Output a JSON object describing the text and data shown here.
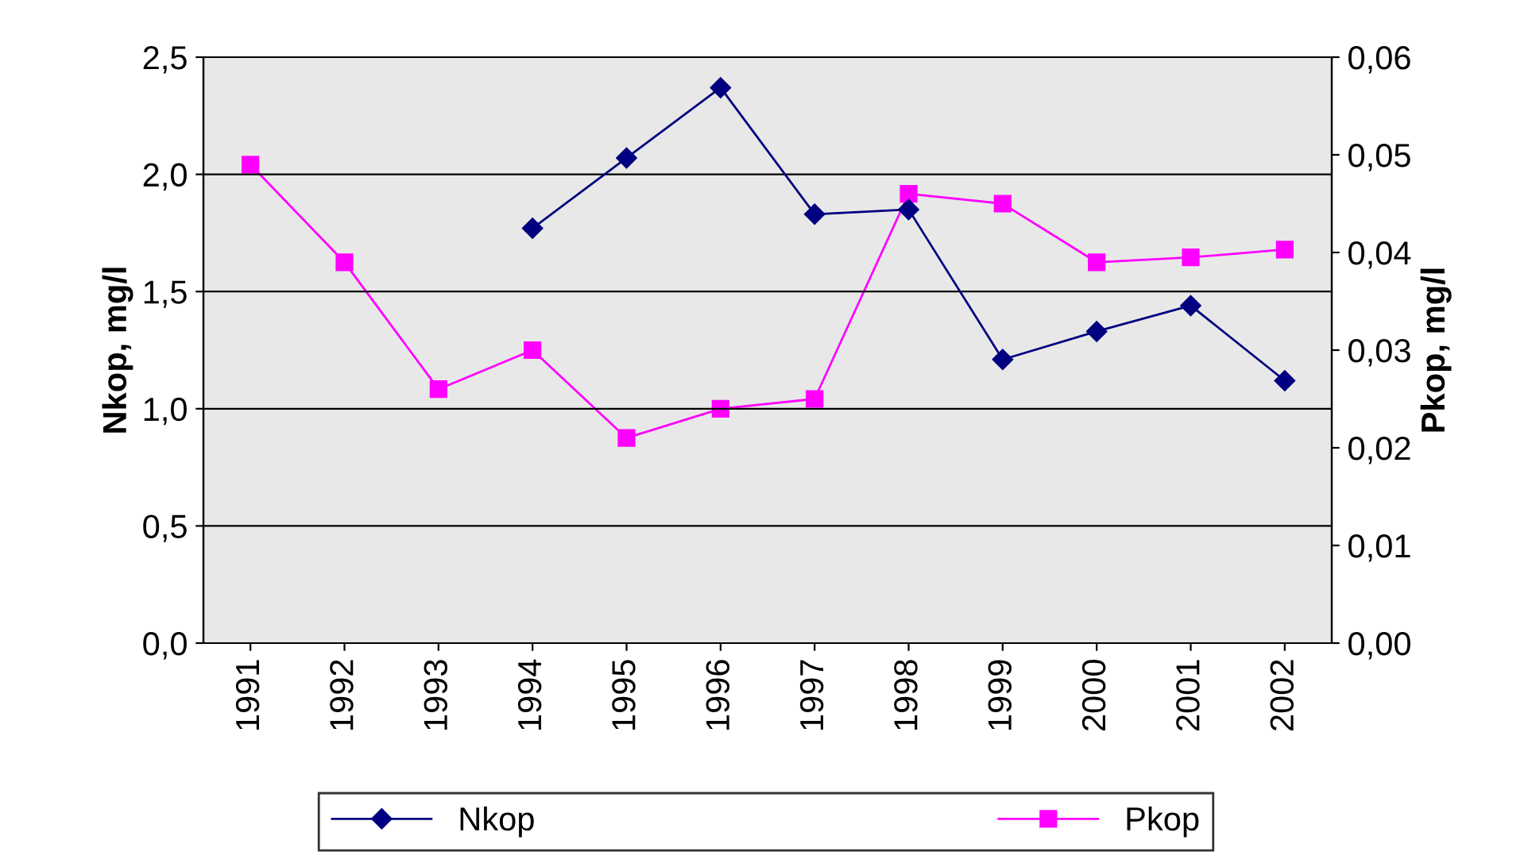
{
  "chart_data": {
    "type": "line",
    "categories": [
      "1991",
      "1992",
      "1993",
      "1994",
      "1995",
      "1996",
      "1997",
      "1998",
      "1999",
      "2000",
      "2001",
      "2002"
    ],
    "series": [
      {
        "name": "Nkop",
        "color": "#000080",
        "marker": "diamond",
        "values": [
          null,
          null,
          null,
          1.77,
          2.07,
          2.37,
          1.83,
          1.85,
          1.21,
          1.33,
          1.44,
          1.12
        ]
      },
      {
        "name": "Pkop",
        "color": "#ff00ff",
        "marker": "square",
        "axis": "y2",
        "values": [
          0.049,
          0.039,
          0.026,
          0.03,
          0.021,
          0.024,
          0.025,
          0.046,
          0.045,
          0.039,
          0.0395,
          0.0403
        ]
      }
    ],
    "ylabel": "Nkop, mg/l",
    "y2label": "Pkop, mg/l",
    "ylim": [
      0,
      2.5
    ],
    "yticks": [
      {
        "value": 0,
        "label": "0,0"
      },
      {
        "value": 0.5,
        "label": "0,5"
      },
      {
        "value": 1,
        "label": "1,0"
      },
      {
        "value": 1.5,
        "label": "1,5"
      },
      {
        "value": 2,
        "label": "2,0"
      },
      {
        "value": 2.5,
        "label": "2,5"
      }
    ],
    "y2lim": [
      0,
      0.06
    ],
    "y2ticks": [
      {
        "value": 0,
        "label": "0,00"
      },
      {
        "value": 0.01,
        "label": "0,01"
      },
      {
        "value": 0.02,
        "label": "0,02"
      },
      {
        "value": 0.03,
        "label": "0,03"
      },
      {
        "value": 0.04,
        "label": "0,04"
      },
      {
        "value": 0.05,
        "label": "0,05"
      },
      {
        "value": 0.06,
        "label": "0,06"
      }
    ],
    "grid": "y",
    "legend": "bottom"
  }
}
